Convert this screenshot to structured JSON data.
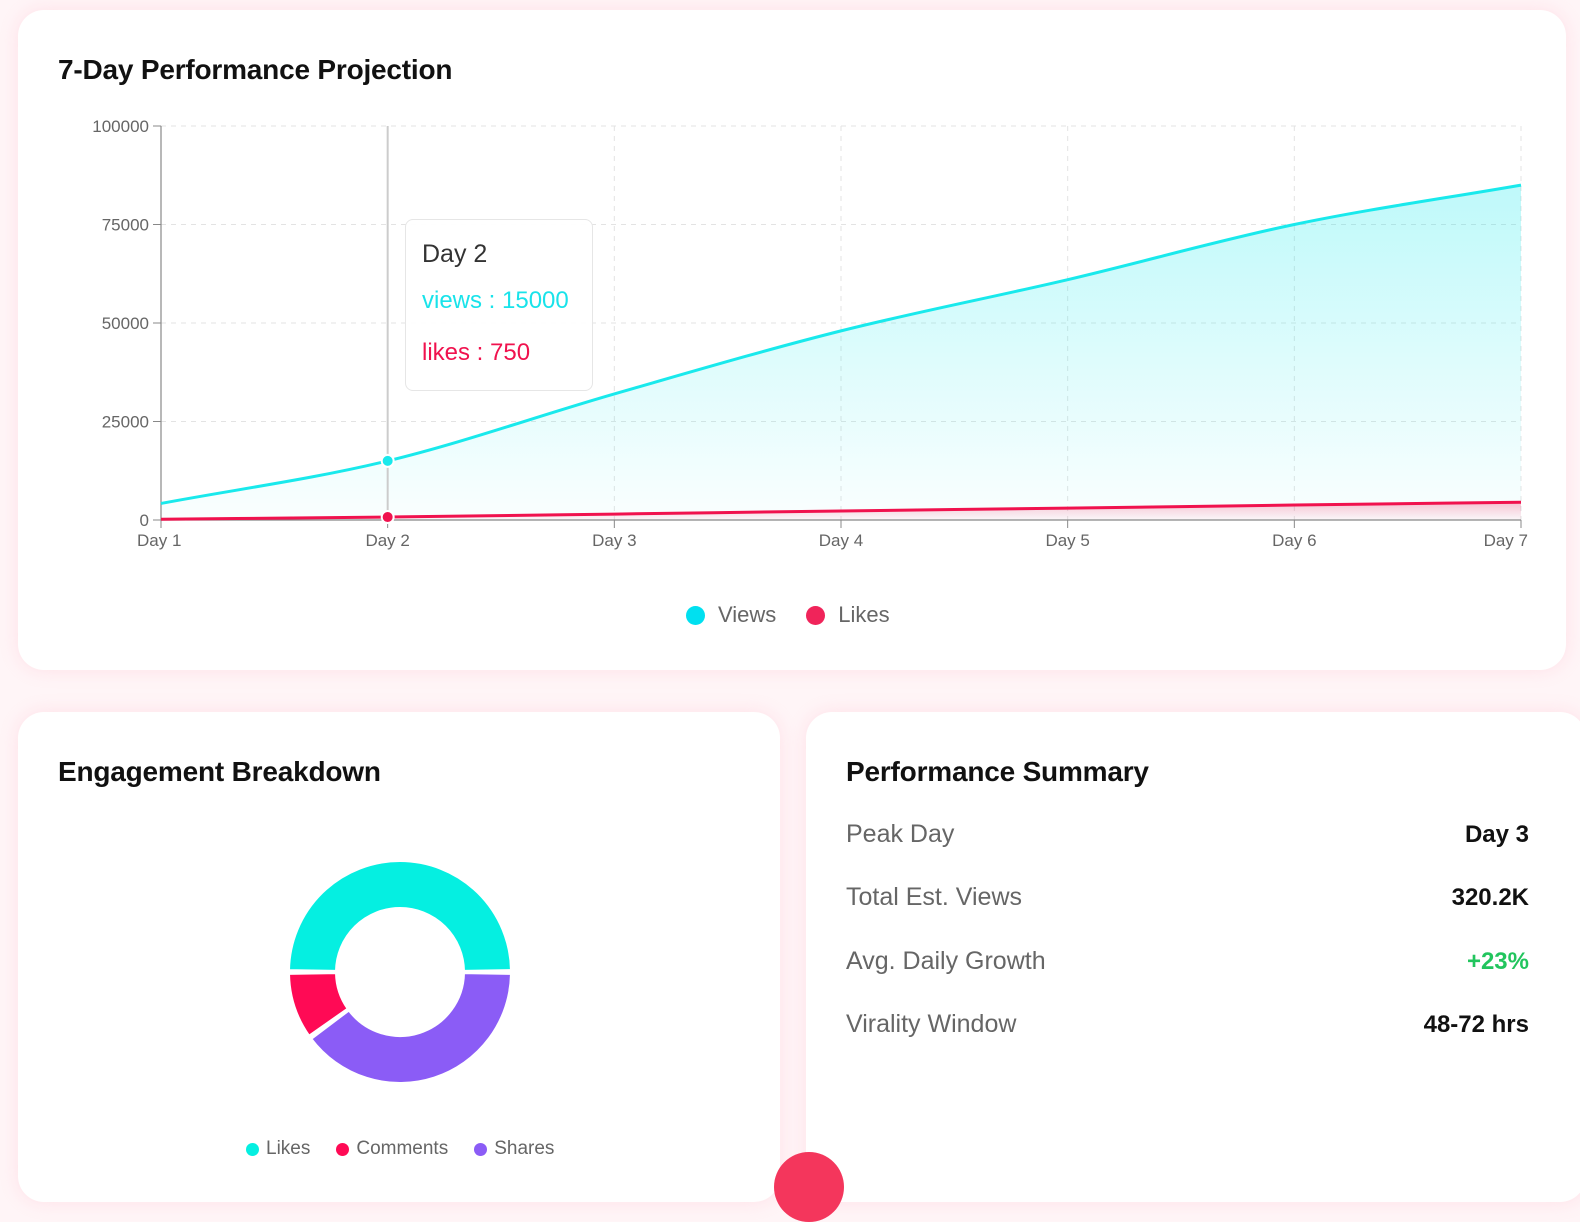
{
  "projection": {
    "title": "7-Day Performance Projection",
    "legend": [
      {
        "label": "Views",
        "color": "#00e0f0"
      },
      {
        "label": "Likes",
        "color": "#f0245a"
      }
    ],
    "tooltip": {
      "title": "Day 2",
      "views_text": "views : 15000",
      "likes_text": "likes : 750"
    }
  },
  "chart_data": [
    {
      "type": "area",
      "title": "7-Day Performance Projection",
      "categories": [
        "Day 1",
        "Day 2",
        "Day 3",
        "Day 4",
        "Day 5",
        "Day 6",
        "Day 7"
      ],
      "series": [
        {
          "name": "views",
          "label": "Views",
          "color": "#19e9ec",
          "values": [
            4200,
            15000,
            32000,
            48000,
            61000,
            75000,
            85000
          ]
        },
        {
          "name": "likes",
          "label": "Likes",
          "color": "#f0124e",
          "values": [
            200,
            750,
            1500,
            2300,
            3000,
            3800,
            4500
          ]
        }
      ],
      "yticks": [
        0,
        25000,
        50000,
        75000,
        100000
      ],
      "ylim": [
        0,
        100000
      ],
      "grid": true,
      "active_category": "Day 2"
    },
    {
      "type": "pie",
      "title": "Engagement Breakdown",
      "labels": [
        "Likes",
        "Comments",
        "Shares"
      ],
      "values": [
        50,
        10,
        40
      ],
      "colors": [
        "#05efe1",
        "#ff0a55",
        "#8b5cf6"
      ],
      "donut": true,
      "legend": "bottom"
    }
  ],
  "engagement": {
    "title": "Engagement Breakdown",
    "legend": [
      {
        "label": "Likes",
        "color": "#05efe1"
      },
      {
        "label": "Comments",
        "color": "#ff0a55"
      },
      {
        "label": "Shares",
        "color": "#8b5cf6"
      }
    ]
  },
  "summary": {
    "title": "Performance Summary",
    "rows": [
      {
        "label": "Peak Day",
        "value": "Day 3"
      },
      {
        "label": "Total Est. Views",
        "value": "320.2K"
      },
      {
        "label": "Avg. Daily Growth",
        "value": "+23%"
      },
      {
        "label": "Virality Window",
        "value": "48-72 hrs"
      }
    ]
  }
}
